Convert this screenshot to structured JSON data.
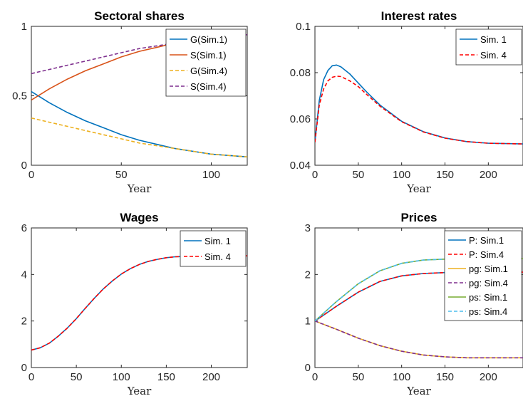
{
  "colors": {
    "blue": "#0072BD",
    "red": "#D95319",
    "yellow": "#EDB120",
    "purple": "#7E2F8E",
    "green": "#77AC30",
    "cyan": "#4DBEEE",
    "dashred": "#FF0000"
  },
  "chart_data": [
    {
      "type": "line",
      "title": "Sectoral shares",
      "xlabel": "Year",
      "ylabel": "",
      "xlim": [
        0,
        120
      ],
      "ylim": [
        0,
        1
      ],
      "xticks": [
        "0",
        "50",
        "100"
      ],
      "yticks": [
        "0",
        "0.5",
        "1"
      ],
      "xtick_values": [
        0,
        50,
        100
      ],
      "ytick_values": [
        0,
        0.5,
        1
      ],
      "legend_position": "top-right",
      "series": [
        {
          "name": "G(Sim.1)",
          "color": "blue",
          "dash": false,
          "x": [
            0,
            10,
            20,
            30,
            40,
            50,
            60,
            70,
            80,
            90,
            100,
            110,
            120
          ],
          "y": [
            0.53,
            0.45,
            0.38,
            0.32,
            0.27,
            0.22,
            0.18,
            0.15,
            0.12,
            0.1,
            0.08,
            0.07,
            0.06
          ]
        },
        {
          "name": "S(Sim.1)",
          "color": "red",
          "dash": false,
          "x": [
            0,
            10,
            20,
            30,
            40,
            50,
            60,
            70,
            80,
            90,
            100,
            110,
            120
          ],
          "y": [
            0.47,
            0.55,
            0.62,
            0.68,
            0.73,
            0.78,
            0.82,
            0.85,
            0.88,
            0.9,
            0.92,
            0.93,
            0.94
          ]
        },
        {
          "name": "G(Sim.4)",
          "color": "yellow",
          "dash": true,
          "x": [
            0,
            10,
            20,
            30,
            40,
            50,
            60,
            70,
            80,
            90,
            100,
            110,
            120
          ],
          "y": [
            0.34,
            0.31,
            0.28,
            0.25,
            0.22,
            0.19,
            0.16,
            0.14,
            0.12,
            0.1,
            0.08,
            0.07,
            0.06
          ]
        },
        {
          "name": "S(Sim.4)",
          "color": "purple",
          "dash": true,
          "x": [
            0,
            10,
            20,
            30,
            40,
            50,
            60,
            70,
            80,
            90,
            100,
            110,
            120
          ],
          "y": [
            0.66,
            0.69,
            0.72,
            0.75,
            0.78,
            0.81,
            0.84,
            0.86,
            0.88,
            0.9,
            0.92,
            0.93,
            0.94
          ]
        }
      ]
    },
    {
      "type": "line",
      "title": "Interest rates",
      "xlabel": "Year",
      "ylabel": "",
      "xlim": [
        0,
        240
      ],
      "ylim": [
        0.04,
        0.1
      ],
      "xticks": [
        "0",
        "50",
        "100",
        "150",
        "200"
      ],
      "yticks": [
        "0.04",
        "0.06",
        "0.08",
        "0.1"
      ],
      "xtick_values": [
        0,
        50,
        100,
        150,
        200
      ],
      "ytick_values": [
        0.04,
        0.06,
        0.08,
        0.1
      ],
      "legend_position": "top-right",
      "series": [
        {
          "name": "Sim. 1",
          "color": "blue",
          "dash": false,
          "x": [
            0,
            5,
            10,
            15,
            20,
            25,
            30,
            40,
            50,
            60,
            75,
            100,
            125,
            150,
            175,
            200,
            240
          ],
          "y": [
            0.05,
            0.068,
            0.077,
            0.081,
            0.083,
            0.0833,
            0.0825,
            0.0795,
            0.0755,
            0.0715,
            0.066,
            0.059,
            0.0545,
            0.0518,
            0.0502,
            0.0495,
            0.0492
          ]
        },
        {
          "name": "Sim. 4",
          "color": "dashred",
          "dash": true,
          "x": [
            0,
            5,
            10,
            15,
            20,
            25,
            30,
            40,
            50,
            60,
            75,
            100,
            125,
            150,
            175,
            200,
            240
          ],
          "y": [
            0.05,
            0.066,
            0.073,
            0.0765,
            0.078,
            0.0785,
            0.0783,
            0.0765,
            0.074,
            0.0705,
            0.0655,
            0.0588,
            0.0544,
            0.0517,
            0.0502,
            0.0495,
            0.0492
          ]
        }
      ]
    },
    {
      "type": "line",
      "title": "Wages",
      "xlabel": "Year",
      "ylabel": "",
      "xlim": [
        0,
        240
      ],
      "ylim": [
        0,
        6
      ],
      "xticks": [
        "0",
        "50",
        "100",
        "150",
        "200"
      ],
      "yticks": [
        "0",
        "2",
        "4",
        "6"
      ],
      "xtick_values": [
        0,
        50,
        100,
        150,
        200
      ],
      "ytick_values": [
        0,
        2,
        4,
        6
      ],
      "legend_position": "top-right",
      "series": [
        {
          "name": "Sim. 1",
          "color": "blue",
          "dash": false,
          "x": [
            0,
            10,
            20,
            30,
            40,
            50,
            60,
            70,
            80,
            90,
            100,
            110,
            120,
            130,
            140,
            150,
            160,
            180,
            200,
            220,
            240
          ],
          "y": [
            0.75,
            0.85,
            1.05,
            1.35,
            1.7,
            2.1,
            2.55,
            2.98,
            3.38,
            3.72,
            4.02,
            4.25,
            4.43,
            4.56,
            4.65,
            4.72,
            4.76,
            4.79,
            4.8,
            4.8,
            4.8
          ]
        },
        {
          "name": "Sim. 4",
          "color": "dashred",
          "dash": true,
          "x": [
            0,
            10,
            20,
            30,
            40,
            50,
            60,
            70,
            80,
            90,
            100,
            110,
            120,
            130,
            140,
            150,
            160,
            180,
            200,
            220,
            240
          ],
          "y": [
            0.75,
            0.85,
            1.05,
            1.35,
            1.7,
            2.1,
            2.55,
            2.98,
            3.38,
            3.72,
            4.02,
            4.25,
            4.43,
            4.56,
            4.65,
            4.72,
            4.76,
            4.79,
            4.8,
            4.8,
            4.8
          ]
        }
      ]
    },
    {
      "type": "line",
      "title": "Prices",
      "xlabel": "Year",
      "ylabel": "",
      "xlim": [
        0,
        240
      ],
      "ylim": [
        0,
        3
      ],
      "xticks": [
        "0",
        "50",
        "100",
        "150",
        "200"
      ],
      "yticks": [
        "0",
        "1",
        "2",
        "3"
      ],
      "xtick_values": [
        0,
        50,
        100,
        150,
        200
      ],
      "ytick_values": [
        0,
        1,
        2,
        3
      ],
      "legend_position": "top-right",
      "series": [
        {
          "name": "P: Sim.1",
          "color": "blue",
          "dash": false,
          "x": [
            0,
            25,
            50,
            75,
            100,
            125,
            150,
            175,
            200,
            240
          ],
          "y": [
            1.0,
            1.32,
            1.62,
            1.85,
            1.97,
            2.02,
            2.04,
            2.05,
            2.05,
            2.05
          ]
        },
        {
          "name": "P: Sim.4",
          "color": "dashred",
          "dash": true,
          "x": [
            0,
            25,
            50,
            75,
            100,
            125,
            150,
            175,
            200,
            240
          ],
          "y": [
            1.0,
            1.32,
            1.62,
            1.85,
            1.97,
            2.02,
            2.04,
            2.05,
            2.05,
            2.05
          ]
        },
        {
          "name": "pg: Sim.1",
          "color": "yellow",
          "dash": false,
          "x": [
            0,
            25,
            50,
            75,
            100,
            125,
            150,
            175,
            200,
            240
          ],
          "y": [
            1.0,
            0.82,
            0.63,
            0.47,
            0.35,
            0.27,
            0.23,
            0.21,
            0.21,
            0.21
          ]
        },
        {
          "name": "pg: Sim.4",
          "color": "purple",
          "dash": true,
          "x": [
            0,
            25,
            50,
            75,
            100,
            125,
            150,
            175,
            200,
            240
          ],
          "y": [
            1.0,
            0.82,
            0.63,
            0.47,
            0.35,
            0.27,
            0.23,
            0.21,
            0.21,
            0.21
          ]
        },
        {
          "name": "ps: Sim.1",
          "color": "green",
          "dash": false,
          "x": [
            0,
            25,
            50,
            75,
            100,
            125,
            150,
            175,
            200,
            240
          ],
          "y": [
            1.0,
            1.42,
            1.8,
            2.08,
            2.24,
            2.31,
            2.33,
            2.34,
            2.34,
            2.34
          ]
        },
        {
          "name": "ps: Sim.4",
          "color": "cyan",
          "dash": true,
          "x": [
            0,
            25,
            50,
            75,
            100,
            125,
            150,
            175,
            200,
            240
          ],
          "y": [
            1.0,
            1.42,
            1.8,
            2.08,
            2.24,
            2.31,
            2.33,
            2.34,
            2.34,
            2.34
          ]
        }
      ]
    }
  ]
}
